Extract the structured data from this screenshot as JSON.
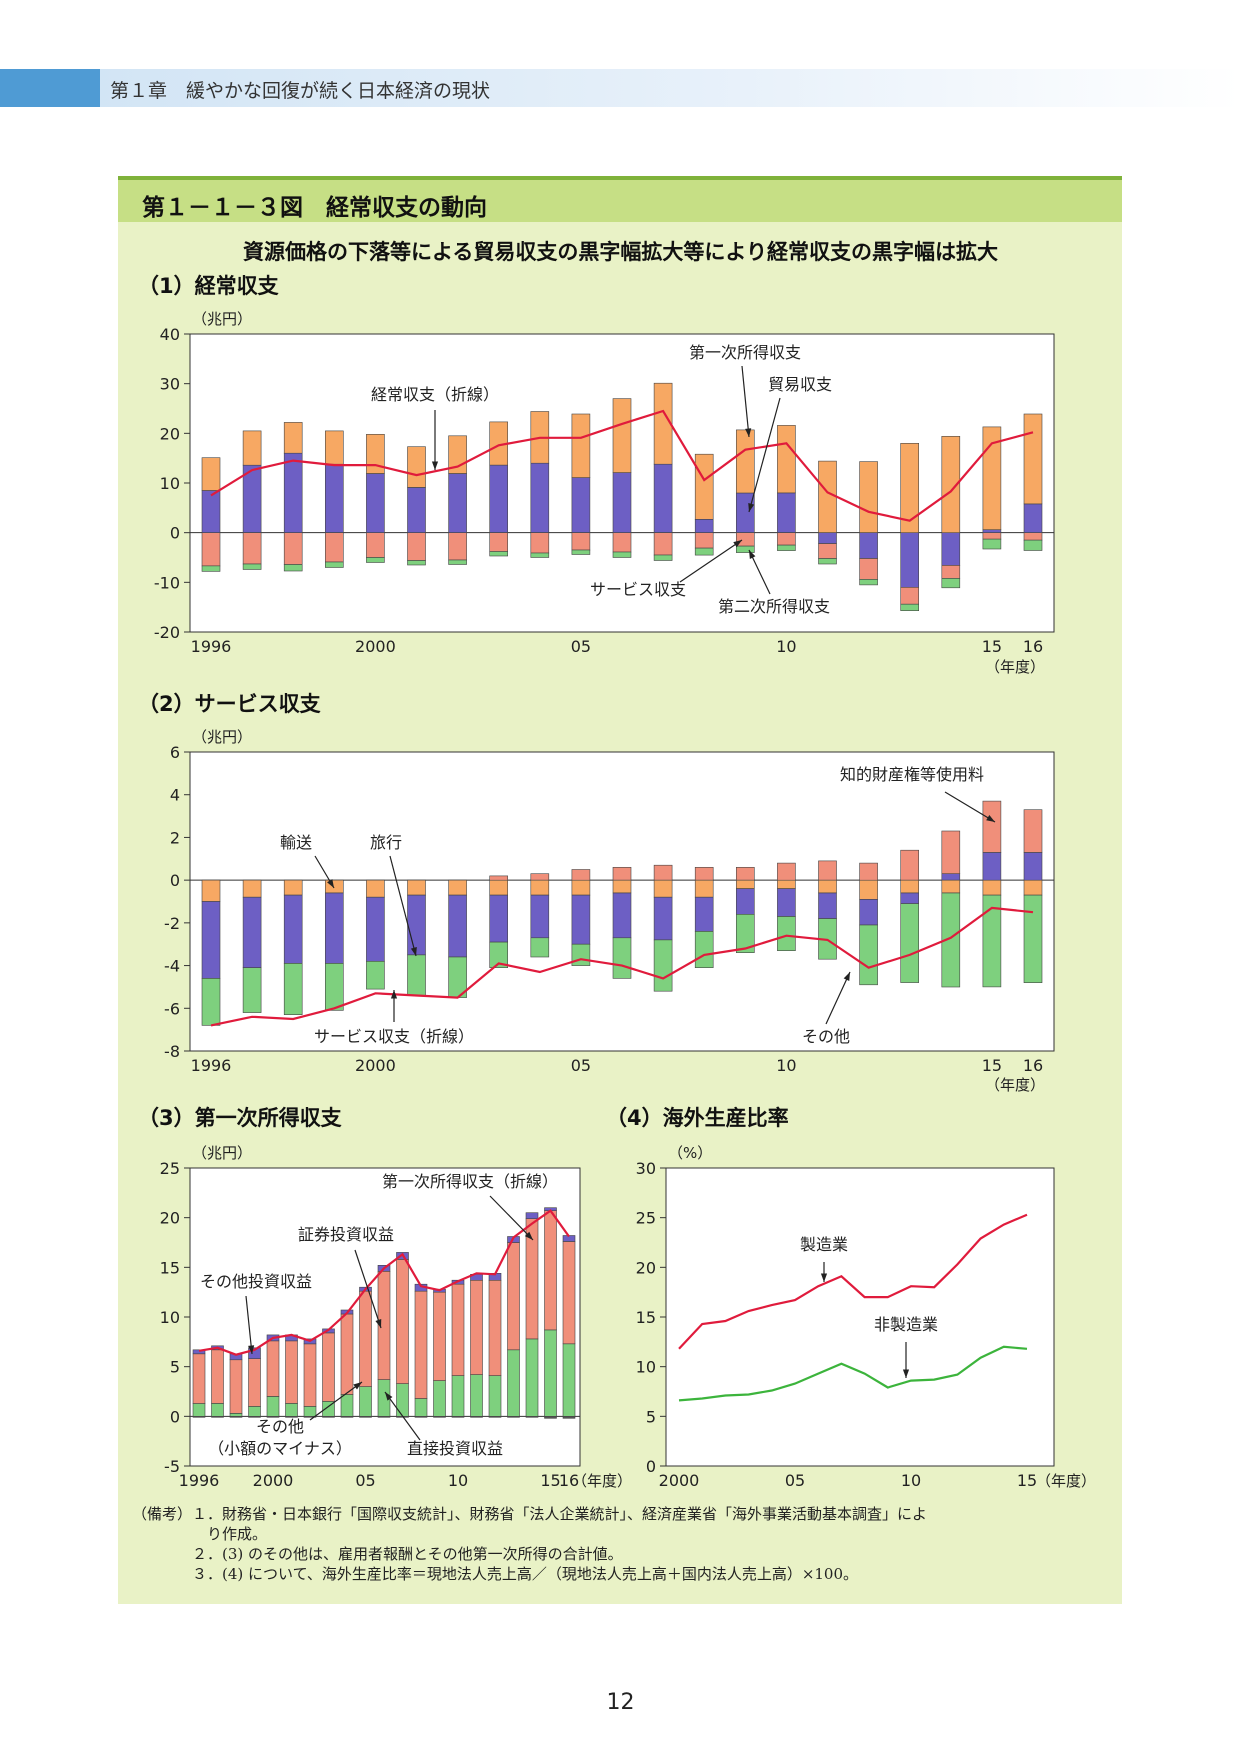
{
  "header": {
    "chapter": "第１章　緩やかな回復が続く日本経済の現状"
  },
  "figure": {
    "title": "第１－１－３図　経常収支の動向",
    "subtitle": "資源価格の下落等による貿易収支の黒字幅拡大等により経常収支の黒字幅は拡大"
  },
  "sections": {
    "s1": "（1）経常収支",
    "s2": "（2）サービス収支",
    "s3": "（3）第一次所得収支",
    "s4": "（4）海外生産比率"
  },
  "colors": {
    "trade": "#6d5fc4",
    "service": "#f08f7a",
    "primary": "#f7a863",
    "secondary": "#7ed07e",
    "line": "#e01b3c",
    "green_line": "#3cb43c"
  },
  "chart_data": [
    {
      "id": "c1",
      "type": "bar",
      "unit": "（兆円）",
      "xunit": "（年度）",
      "ylim": [
        -20,
        40
      ],
      "yticks": [
        40,
        30,
        20,
        10,
        0,
        -10,
        -20
      ],
      "xticklabels": [
        {
          "year": 1996,
          "label": "1996"
        },
        {
          "year": 2000,
          "label": "2000"
        },
        {
          "year": 2005,
          "label": "05"
        },
        {
          "year": 2010,
          "label": "10"
        },
        {
          "year": 2015,
          "label": "15"
        },
        {
          "year": 2016,
          "label": "16"
        }
      ],
      "years": [
        1996,
        1997,
        1998,
        1999,
        2000,
        2001,
        2002,
        2003,
        2004,
        2005,
        2006,
        2007,
        2008,
        2009,
        2010,
        2011,
        2012,
        2013,
        2014,
        2015,
        2016
      ],
      "series": [
        {
          "name": "貿易収支",
          "values": [
            8.5,
            13.6,
            16.0,
            13.8,
            11.9,
            9.1,
            11.9,
            13.6,
            14.0,
            11.1,
            12.1,
            13.8,
            2.7,
            8.0,
            8.0,
            -2.2,
            -5.2,
            -11.0,
            -6.6,
            0.6,
            5.8
          ]
        },
        {
          "name": "サービス収支",
          "values": [
            -6.7,
            -6.3,
            -6.4,
            -5.9,
            -5.0,
            -5.6,
            -5.5,
            -3.8,
            -4.1,
            -3.5,
            -3.9,
            -4.5,
            -3.1,
            -2.7,
            -2.5,
            -3.0,
            -4.2,
            -3.4,
            -2.6,
            -1.3,
            -1.5
          ]
        },
        {
          "name": "第一次所得収支",
          "values": [
            6.6,
            6.9,
            6.2,
            6.7,
            7.9,
            8.2,
            7.6,
            8.7,
            10.4,
            12.8,
            14.9,
            16.3,
            13.1,
            12.7,
            13.6,
            14.4,
            14.3,
            18.0,
            19.4,
            20.7,
            18.1
          ]
        },
        {
          "name": "第二次所得収支",
          "values": [
            -1.1,
            -1.1,
            -1.3,
            -1.1,
            -1.0,
            -0.9,
            -0.9,
            -0.9,
            -0.9,
            -0.9,
            -1.1,
            -1.1,
            -1.4,
            -1.3,
            -1.1,
            -1.1,
            -1.1,
            -1.3,
            -1.9,
            -2.0,
            -2.1
          ]
        },
        {
          "name": "経常収支",
          "values": [
            7.5,
            12.6,
            14.5,
            13.6,
            13.6,
            11.6,
            13.3,
            17.6,
            19.1,
            19.1,
            21.9,
            24.5,
            10.6,
            16.7,
            18.0,
            8.1,
            4.2,
            2.4,
            8.3,
            18.0,
            20.2
          ]
        }
      ],
      "annotations": [
        "第一次所得収支",
        "貿易収支",
        "経常収支（折線）",
        "サービス収支",
        "第二次所得収支"
      ]
    },
    {
      "id": "c2",
      "type": "bar",
      "unit": "（兆円）",
      "xunit": "（年度）",
      "ylim": [
        -8,
        6
      ],
      "yticks": [
        6,
        4,
        2,
        0,
        -2,
        -4,
        -6,
        -8
      ],
      "xticklabels": [
        {
          "year": 1996,
          "label": "1996"
        },
        {
          "year": 2000,
          "label": "2000"
        },
        {
          "year": 2005,
          "label": "05"
        },
        {
          "year": 2010,
          "label": "10"
        },
        {
          "year": 2015,
          "label": "15"
        },
        {
          "year": 2016,
          "label": "16"
        }
      ],
      "years": [
        1996,
        1997,
        1998,
        1999,
        2000,
        2001,
        2002,
        2003,
        2004,
        2005,
        2006,
        2007,
        2008,
        2009,
        2010,
        2011,
        2012,
        2013,
        2014,
        2015,
        2016
      ],
      "series": [
        {
          "name": "輸送",
          "values": [
            -1.0,
            -0.8,
            -0.7,
            -0.6,
            -0.8,
            -0.7,
            -0.7,
            -0.7,
            -0.7,
            -0.7,
            -0.6,
            -0.8,
            -0.8,
            -0.4,
            -0.4,
            -0.6,
            -0.9,
            -0.6,
            -0.6,
            -0.7,
            -0.7
          ]
        },
        {
          "name": "旅行",
          "values": [
            -3.6,
            -3.3,
            -3.2,
            -3.3,
            -3.0,
            -2.8,
            -2.9,
            -2.2,
            -2.0,
            -2.3,
            -2.1,
            -2.0,
            -1.6,
            -1.2,
            -1.3,
            -1.2,
            -1.2,
            -0.5,
            0.3,
            1.3,
            1.3
          ]
        },
        {
          "name": "知的財産権等使用料",
          "values": [
            0.0,
            0.0,
            0.0,
            0.0,
            0.0,
            0.0,
            0.0,
            0.2,
            0.3,
            0.5,
            0.6,
            0.7,
            0.6,
            0.6,
            0.8,
            0.9,
            0.8,
            1.4,
            2.0,
            2.4,
            2.0
          ]
        },
        {
          "name": "その他",
          "values": [
            -2.2,
            -2.1,
            -2.4,
            -2.2,
            -1.3,
            -1.9,
            -1.9,
            -1.2,
            -0.9,
            -1.0,
            -1.9,
            -2.4,
            -1.7,
            -1.8,
            -1.6,
            -1.9,
            -2.8,
            -3.7,
            -4.4,
            -4.3,
            -4.1
          ]
        },
        {
          "name": "サービス収支",
          "values": [
            -6.8,
            -6.4,
            -6.5,
            -6.0,
            -5.3,
            -5.4,
            -5.5,
            -3.9,
            -4.3,
            -3.7,
            -4.0,
            -4.6,
            -3.5,
            -3.2,
            -2.6,
            -2.8,
            -4.1,
            -3.5,
            -2.7,
            -1.3,
            -1.5
          ]
        }
      ],
      "annotations": [
        "知的財産権等使用料",
        "輸送",
        "旅行",
        "サービス収支（折線）",
        "その他"
      ]
    },
    {
      "id": "c3",
      "type": "bar",
      "unit": "（兆円）",
      "xunit": "（年度）",
      "ylim": [
        -5,
        25
      ],
      "yticks": [
        25,
        20,
        15,
        10,
        5,
        0,
        -5
      ],
      "xticklabels": [
        {
          "year": 1996,
          "label": "1996"
        },
        {
          "year": 2000,
          "label": "2000"
        },
        {
          "year": 2005,
          "label": "05"
        },
        {
          "year": 2010,
          "label": "10"
        },
        {
          "year": 2015,
          "label": "15"
        },
        {
          "year": 2016,
          "label": "16"
        }
      ],
      "years": [
        1996,
        1997,
        1998,
        1999,
        2000,
        2001,
        2002,
        2003,
        2004,
        2005,
        2006,
        2007,
        2008,
        2009,
        2010,
        2011,
        2012,
        2013,
        2014,
        2015,
        2016
      ],
      "series": [
        {
          "name": "直接投資収益",
          "values": [
            1.3,
            1.3,
            0.3,
            1.0,
            2.0,
            1.3,
            1.0,
            1.5,
            2.2,
            3.0,
            3.7,
            3.3,
            1.8,
            3.6,
            4.1,
            4.2,
            4.1,
            6.7,
            7.8,
            8.7,
            7.3
          ]
        },
        {
          "name": "証券投資収益",
          "values": [
            5.0,
            5.4,
            5.4,
            4.8,
            5.6,
            6.3,
            6.3,
            6.9,
            8.1,
            9.6,
            10.9,
            12.5,
            10.8,
            8.9,
            9.2,
            9.5,
            9.6,
            10.8,
            12.1,
            12.0,
            10.3
          ]
        },
        {
          "name": "その他投資収益",
          "values": [
            0.4,
            0.4,
            0.6,
            1.1,
            0.6,
            0.6,
            0.5,
            0.4,
            0.4,
            0.4,
            0.6,
            0.7,
            0.7,
            0.3,
            0.4,
            0.6,
            0.7,
            0.6,
            0.6,
            0.3,
            0.6
          ]
        },
        {
          "name": "その他",
          "values": [
            -0.1,
            -0.1,
            -0.1,
            -0.1,
            -0.1,
            -0.1,
            -0.1,
            -0.1,
            -0.1,
            -0.1,
            -0.1,
            -0.1,
            -0.1,
            -0.1,
            -0.1,
            -0.1,
            -0.1,
            -0.1,
            -0.1,
            -0.2,
            -0.2
          ]
        },
        {
          "name": "第一次所得収支",
          "values": [
            6.6,
            6.9,
            6.2,
            6.7,
            7.9,
            8.2,
            7.6,
            8.7,
            10.4,
            12.8,
            14.9,
            16.3,
            13.1,
            12.7,
            13.6,
            14.4,
            14.3,
            18.0,
            19.4,
            20.7,
            18.1
          ]
        }
      ],
      "annotations": [
        "第一次所得収支（折線）",
        "証券投資収益",
        "その他投資収益",
        "その他",
        "（小額のマイナス）",
        "直接投資収益"
      ]
    },
    {
      "id": "c4",
      "type": "line",
      "unit": "（%）",
      "xunit": "（年度）",
      "ylim": [
        0,
        30
      ],
      "yticks": [
        30,
        25,
        20,
        15,
        10,
        5,
        0
      ],
      "xticklabels": [
        {
          "year": 2000,
          "label": "2000"
        },
        {
          "year": 2005,
          "label": "05"
        },
        {
          "year": 2010,
          "label": "10"
        },
        {
          "year": 2015,
          "label": "15"
        }
      ],
      "years": [
        2000,
        2001,
        2002,
        2003,
        2004,
        2005,
        2006,
        2007,
        2008,
        2009,
        2010,
        2011,
        2012,
        2013,
        2014,
        2015,
        2016
      ],
      "series": [
        {
          "name": "製造業",
          "values": [
            11.8,
            14.3,
            14.6,
            15.6,
            16.2,
            16.7,
            18.1,
            19.1,
            17.0,
            17.0,
            18.1,
            18.0,
            20.3,
            22.9,
            24.3,
            25.3,
            null
          ]
        },
        {
          "name": "非製造業",
          "values": [
            6.6,
            6.8,
            7.1,
            7.2,
            7.6,
            8.3,
            9.3,
            10.3,
            9.3,
            7.9,
            8.6,
            8.7,
            9.2,
            10.9,
            12.0,
            11.8,
            null
          ]
        }
      ],
      "annotations": [
        "製造業",
        "非製造業"
      ]
    }
  ],
  "labels": {
    "c1": {
      "a1": "第一次所得収支",
      "a2": "貿易収支",
      "a3": "経常収支（折線）",
      "a4": "サービス収支",
      "a5": "第二次所得収支"
    },
    "c2": {
      "a1": "知的財産権等使用料",
      "a2": "輸送",
      "a3": "旅行",
      "a4": "サービス収支（折線）",
      "a5": "その他"
    },
    "c3": {
      "a1": "第一次所得収支（折線）",
      "a2": "証券投資収益",
      "a3": "その他投資収益",
      "a4": "その他",
      "a5": "（小額のマイナス）",
      "a6": "直接投資収益"
    },
    "c4": {
      "a1": "製造業",
      "a2": "非製造業"
    }
  },
  "notes": [
    "（備考）１．財務省・日本銀行「国際収支統計」、財務省「法人企業統計」、経済産業省「海外事業活動基本調査」によ",
    "　　　　　り作成。",
    "　　　　２．(3) のその他は、雇用者報酬とその他第一次所得の合計値。",
    "　　　　３．(4) について、海外生産比率＝現地法人売上高／（現地法人売上高＋国内法人売上高）×100。"
  ],
  "page_number": "12"
}
